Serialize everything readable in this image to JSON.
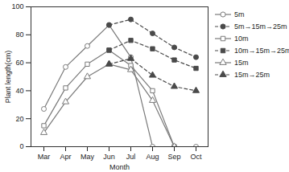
{
  "chart_data": {
    "type": "line",
    "x_label": "Month",
    "y_label": "Plant length(cm)",
    "categories": [
      "Mar",
      "Apr",
      "May",
      "Jun",
      "Jul",
      "Aug",
      "Sep",
      "Oct"
    ],
    "ylim": [
      0,
      100
    ],
    "yticks": [
      0,
      20,
      40,
      60,
      80,
      100
    ],
    "grid": false,
    "legend": "right",
    "series": [
      {
        "name": "5m",
        "color": "#7a7a7a",
        "marker": "open-circle",
        "line_style": "solid",
        "values": [
          27,
          57,
          72,
          87,
          64,
          0,
          0,
          0
        ]
      },
      {
        "name": "5m→15m→25m",
        "color": "#4a4a4a",
        "marker": "circle",
        "line_style": "dashed",
        "values": [
          null,
          null,
          null,
          87,
          91,
          81,
          71,
          64
        ]
      },
      {
        "name": "10m",
        "color": "#7a7a7a",
        "marker": "open-square",
        "line_style": "solid",
        "values": [
          15,
          42,
          59,
          69,
          58,
          40,
          0,
          null
        ]
      },
      {
        "name": "10m→15m→25m",
        "color": "#4a4a4a",
        "marker": "square",
        "line_style": "dashed",
        "values": [
          null,
          null,
          null,
          69,
          76,
          70,
          62,
          56
        ]
      },
      {
        "name": "15m",
        "color": "#7a7a7a",
        "marker": "open-triangle",
        "line_style": "solid",
        "values": [
          10,
          32,
          50,
          59,
          55,
          33,
          0,
          null
        ]
      },
      {
        "name": "15m→25m",
        "color": "#4a4a4a",
        "marker": "triangle",
        "line_style": "dashed",
        "values": [
          null,
          null,
          null,
          59,
          63,
          51,
          43,
          40
        ]
      }
    ]
  }
}
